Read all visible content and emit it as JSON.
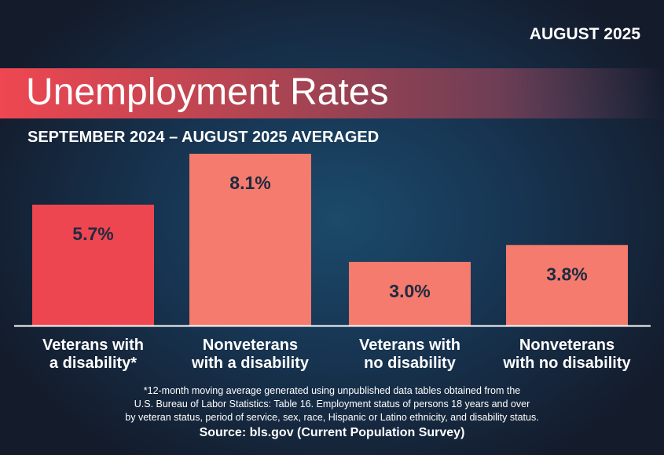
{
  "header": {
    "date": "AUGUST 2025",
    "title": "Unemployment Rates",
    "subtitle": "SEPTEMBER 2024 – AUGUST 2025 AVERAGED"
  },
  "chart_data": {
    "type": "bar",
    "categories": [
      [
        "Veterans with",
        "a disability*"
      ],
      [
        "Nonveterans",
        "with a disability"
      ],
      [
        "Veterans with",
        "no disability"
      ],
      [
        "Nonveterans",
        "with no disability"
      ]
    ],
    "values": [
      5.7,
      8.1,
      3.0,
      3.8
    ],
    "data_labels": [
      "5.7%",
      "8.1%",
      "3.0%",
      "3.8%"
    ],
    "colors": [
      "#ee4650",
      "#f47b6d",
      "#f47b6d",
      "#f47b6d"
    ],
    "ylim": [
      0,
      8.1
    ],
    "grid": false
  },
  "footer": {
    "note_lines": [
      "*12-month moving average generated using unpublished data tables obtained from the",
      "U.S. Bureau of Labor Statistics: Table 16. Employment status of persons 18 years and over",
      "by veteran status, period of service, sex, race, Hispanic or Latino ethnicity, and disability status."
    ],
    "source": "Source: bls.gov (Current Population Survey)"
  }
}
